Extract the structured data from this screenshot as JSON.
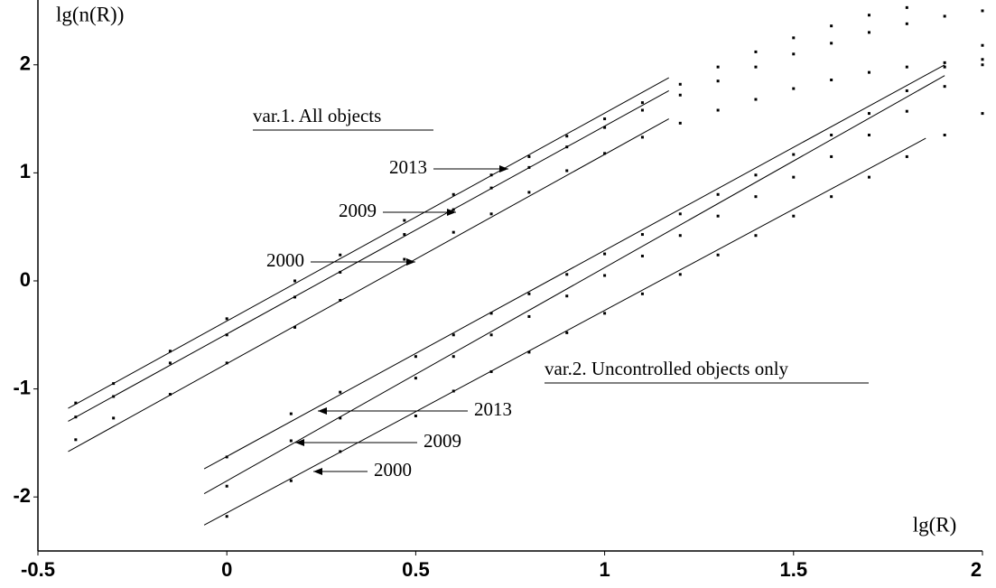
{
  "chart_data": {
    "type": "scatter-fit",
    "x_label": "lg(R)",
    "y_label": "lg(n(R))",
    "xlim": [
      -0.5,
      2
    ],
    "ylim": [
      -2.5,
      2.6
    ],
    "xticks": [
      -0.5,
      0,
      0.5,
      1,
      1.5,
      2
    ],
    "yticks": [
      -2,
      -1,
      0,
      1,
      2
    ],
    "annotations": [
      "var.1. All objects",
      "var.2. Uncontrolled objects only"
    ],
    "color": "#000000",
    "series": [
      {
        "name": "2013",
        "fit_x": [
          -0.42,
          1.17
        ],
        "fit_y": [
          -1.18,
          1.88
        ],
        "x": [
          -0.4,
          -0.3,
          -0.15,
          0,
          0.18,
          0.3,
          0.47,
          0.6,
          0.7,
          0.8,
          0.9,
          1.0,
          1.1,
          1.2,
          1.3,
          1.4,
          1.5,
          1.6,
          1.7,
          1.8
        ],
        "values": [
          -1.13,
          -0.95,
          -0.65,
          -0.35,
          0.0,
          0.24,
          0.56,
          0.8,
          0.98,
          1.15,
          1.34,
          1.5,
          1.65,
          1.82,
          1.98,
          2.12,
          2.25,
          2.36,
          2.46,
          2.53
        ]
      },
      {
        "name": "2009",
        "fit_x": [
          -0.42,
          1.17
        ],
        "fit_y": [
          -1.3,
          1.76
        ],
        "x": [
          -0.4,
          -0.3,
          -0.15,
          0,
          0.18,
          0.3,
          0.47,
          0.6,
          0.7,
          0.8,
          0.9,
          1.0,
          1.1,
          1.2,
          1.3,
          1.4,
          1.5,
          1.6,
          1.7,
          1.8,
          1.9,
          2.0
        ],
        "values": [
          -1.26,
          -1.07,
          -0.76,
          -0.5,
          -0.15,
          0.08,
          0.43,
          0.66,
          0.86,
          1.05,
          1.24,
          1.42,
          1.58,
          1.72,
          1.85,
          1.98,
          2.1,
          2.2,
          2.3,
          2.38,
          2.45,
          2.5
        ]
      },
      {
        "name": "2000",
        "fit_x": [
          -0.42,
          1.17
        ],
        "fit_y": [
          -1.58,
          1.5
        ],
        "x": [
          -0.4,
          -0.3,
          -0.15,
          0,
          0.18,
          0.3,
          0.47,
          0.6,
          0.7,
          0.8,
          0.9,
          1.0,
          1.1,
          1.2,
          1.3,
          1.4,
          1.5,
          1.6,
          1.7,
          1.8,
          1.9,
          2.0
        ],
        "values": [
          -1.47,
          -1.27,
          -1.05,
          -0.76,
          -0.43,
          -0.18,
          0.2,
          0.45,
          0.62,
          0.82,
          1.02,
          1.18,
          1.33,
          1.46,
          1.58,
          1.68,
          1.78,
          1.86,
          1.93,
          1.98,
          2.02,
          2.05
        ]
      },
      {
        "name": "2013",
        "fit_x": [
          -0.06,
          1.9
        ],
        "fit_y": [
          -1.74,
          2.0
        ],
        "x": [
          0,
          0.17,
          0.3,
          0.5,
          0.6,
          0.7,
          0.8,
          0.9,
          1.0,
          1.1,
          1.2,
          1.3,
          1.4,
          1.5,
          1.6,
          1.7,
          1.8,
          1.9,
          2.0
        ],
        "values": [
          -1.63,
          -1.23,
          -1.03,
          -0.7,
          -0.5,
          -0.3,
          -0.12,
          0.06,
          0.25,
          0.43,
          0.62,
          0.8,
          0.98,
          1.17,
          1.35,
          1.55,
          1.76,
          1.98,
          2.18
        ]
      },
      {
        "name": "2009",
        "fit_x": [
          -0.06,
          1.9
        ],
        "fit_y": [
          -1.97,
          1.9
        ],
        "x": [
          0,
          0.17,
          0.3,
          0.5,
          0.6,
          0.7,
          0.8,
          0.9,
          1.0,
          1.1,
          1.2,
          1.3,
          1.4,
          1.5,
          1.6,
          1.7,
          1.8,
          1.9,
          2.0
        ],
        "values": [
          -1.9,
          -1.48,
          -1.27,
          -0.9,
          -0.7,
          -0.5,
          -0.33,
          -0.14,
          0.05,
          0.23,
          0.42,
          0.6,
          0.78,
          0.96,
          1.15,
          1.35,
          1.57,
          1.8,
          2.0
        ]
      },
      {
        "name": "2000",
        "fit_x": [
          -0.06,
          1.85
        ],
        "fit_y": [
          -2.26,
          1.32
        ],
        "x": [
          0,
          0.17,
          0.3,
          0.5,
          0.6,
          0.7,
          0.8,
          0.9,
          1.0,
          1.1,
          1.2,
          1.3,
          1.4,
          1.5,
          1.6,
          1.7,
          1.8,
          1.9,
          2.0
        ],
        "values": [
          -2.18,
          -1.85,
          -1.58,
          -1.25,
          -1.02,
          -0.84,
          -0.66,
          -0.48,
          -0.3,
          -0.12,
          0.06,
          0.24,
          0.42,
          0.6,
          0.78,
          0.96,
          1.15,
          1.35,
          1.55
        ]
      }
    ]
  }
}
